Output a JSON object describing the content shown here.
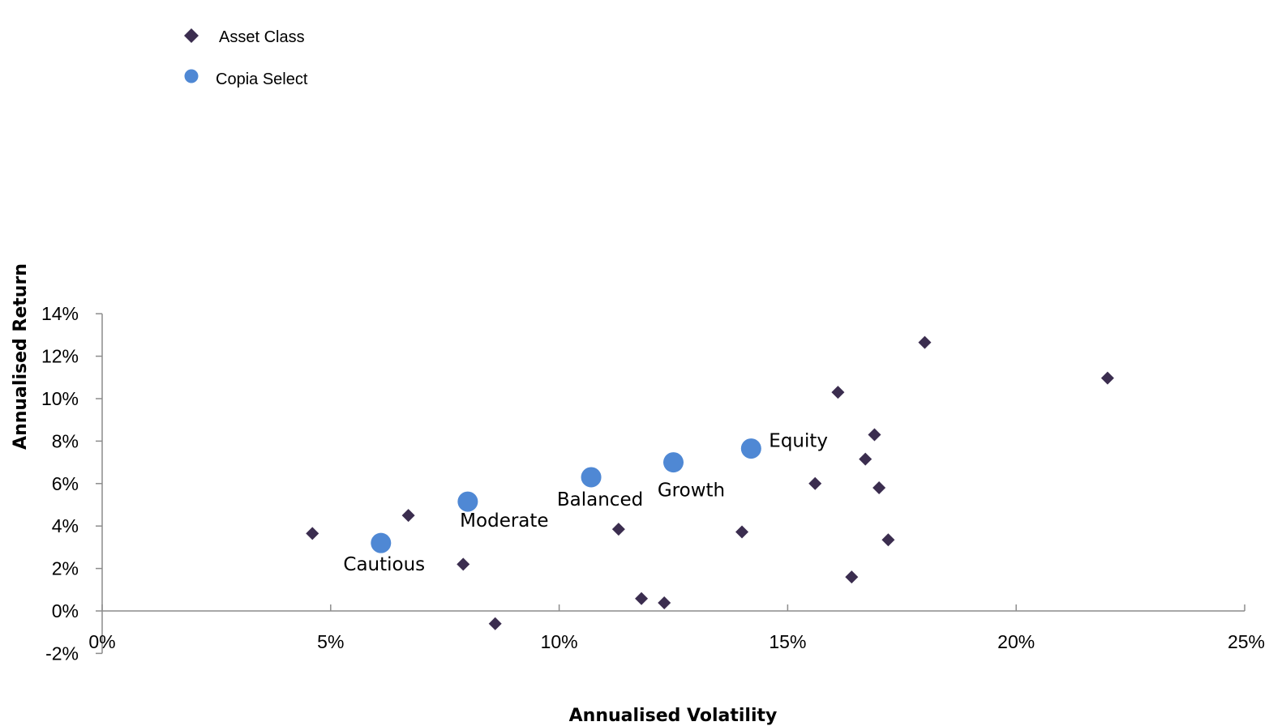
{
  "chart_data": {
    "type": "scatter",
    "title": "",
    "xlabel": "Annualised Volatility",
    "ylabel": "Annualised Return",
    "xlim": [
      0,
      25
    ],
    "ylim": [
      -2,
      14
    ],
    "x_ticks": [
      "0%",
      "5%",
      "10%",
      "15%",
      "20%",
      "25%"
    ],
    "x_tick_values": [
      0,
      5,
      10,
      15,
      20,
      25
    ],
    "y_ticks": [
      "-2%",
      "0%",
      "2%",
      "4%",
      "6%",
      "8%",
      "10%",
      "12%",
      "14%"
    ],
    "y_tick_values": [
      -2,
      0,
      2,
      4,
      6,
      8,
      10,
      12,
      14
    ],
    "grid": false,
    "legend_position": "top-left",
    "series": [
      {
        "name": "Asset Class",
        "marker": "diamond",
        "color": "#3b2d4f",
        "points": [
          {
            "x": 4.6,
            "y": 3.65
          },
          {
            "x": 6.7,
            "y": 4.5
          },
          {
            "x": 7.9,
            "y": 2.2
          },
          {
            "x": 8.6,
            "y": -0.6
          },
          {
            "x": 11.3,
            "y": 3.85
          },
          {
            "x": 11.8,
            "y": 0.58
          },
          {
            "x": 12.3,
            "y": 0.38
          },
          {
            "x": 14.0,
            "y": 3.72
          },
          {
            "x": 15.6,
            "y": 6.0
          },
          {
            "x": 16.1,
            "y": 10.3
          },
          {
            "x": 16.4,
            "y": 1.6
          },
          {
            "x": 16.7,
            "y": 7.15
          },
          {
            "x": 16.9,
            "y": 8.3
          },
          {
            "x": 17.0,
            "y": 5.8
          },
          {
            "x": 17.2,
            "y": 3.35
          },
          {
            "x": 18.0,
            "y": 12.65
          },
          {
            "x": 22.0,
            "y": 10.97
          }
        ]
      },
      {
        "name": "Copia Select",
        "marker": "circle",
        "color": "#4f88d4",
        "points": [
          {
            "x": 6.1,
            "y": 3.2,
            "label": "Cautious"
          },
          {
            "x": 8.0,
            "y": 5.15,
            "label": "Moderate"
          },
          {
            "x": 10.7,
            "y": 6.3,
            "label": "Balanced"
          },
          {
            "x": 12.5,
            "y": 7.0,
            "label": "Growth"
          },
          {
            "x": 14.2,
            "y": 7.65,
            "label": "Equity"
          }
        ]
      }
    ]
  }
}
